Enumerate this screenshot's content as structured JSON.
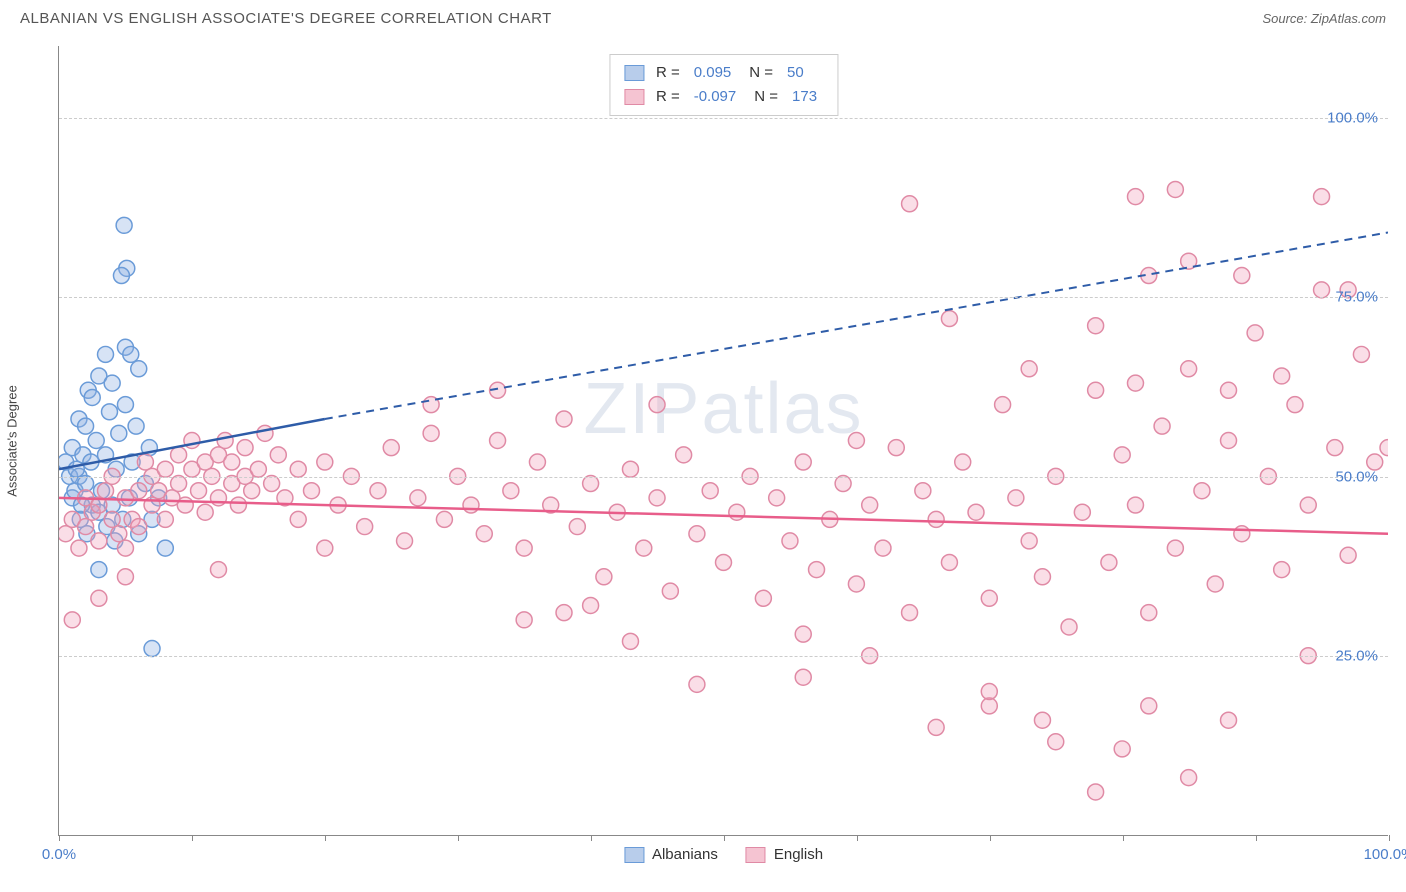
{
  "title": "ALBANIAN VS ENGLISH ASSOCIATE'S DEGREE CORRELATION CHART",
  "source": "Source: ZipAtlas.com",
  "watermark": "ZIPatlas",
  "y_axis_label": "Associate's Degree",
  "chart": {
    "type": "scatter",
    "xlim": [
      0,
      100
    ],
    "ylim": [
      0,
      110
    ],
    "x_ticks": [
      0,
      10,
      20,
      30,
      40,
      50,
      60,
      70,
      80,
      90,
      100
    ],
    "x_tick_labels": {
      "0": "0.0%",
      "100": "100.0%"
    },
    "y_gridlines": [
      25,
      50,
      75,
      100
    ],
    "y_labels": {
      "25": "25.0%",
      "50": "50.0%",
      "75": "75.0%",
      "100": "100.0%"
    },
    "background_color": "#ffffff",
    "grid_color": "#cccccc",
    "axis_color": "#888888",
    "label_color": "#4a7dc9",
    "marker_radius": 8,
    "marker_stroke_width": 1.5,
    "series": [
      {
        "name": "Albanians",
        "fill": "rgba(140,175,225,0.35)",
        "stroke": "#6a9bd8",
        "swatch_fill": "#b8cdeb",
        "swatch_border": "#6a9bd8",
        "R": "0.095",
        "N": "50",
        "trend": {
          "solid": {
            "x1": 0,
            "y1": 51,
            "x2": 20,
            "y2": 58
          },
          "dashed": {
            "x1": 20,
            "y1": 58,
            "x2": 100,
            "y2": 84
          },
          "color": "#2e5ca8",
          "width": 2.5
        },
        "points": [
          [
            0.5,
            52
          ],
          [
            0.8,
            50
          ],
          [
            1,
            47
          ],
          [
            1,
            54
          ],
          [
            1.2,
            48
          ],
          [
            1.5,
            50
          ],
          [
            1.5,
            58
          ],
          [
            1.6,
            44
          ],
          [
            1.8,
            53
          ],
          [
            2,
            49
          ],
          [
            2,
            57
          ],
          [
            2.2,
            62
          ],
          [
            2.4,
            52
          ],
          [
            2.5,
            46
          ],
          [
            2.5,
            61
          ],
          [
            2.8,
            55
          ],
          [
            3,
            45
          ],
          [
            3,
            64
          ],
          [
            3.2,
            48
          ],
          [
            3.5,
            53
          ],
          [
            3.5,
            67
          ],
          [
            3.8,
            59
          ],
          [
            4,
            46
          ],
          [
            4,
            63
          ],
          [
            4.3,
            51
          ],
          [
            4.5,
            56
          ],
          [
            4.8,
            44
          ],
          [
            5,
            60
          ],
          [
            5,
            68
          ],
          [
            5.3,
            47
          ],
          [
            5.5,
            52
          ],
          [
            5.8,
            57
          ],
          [
            6,
            42
          ],
          [
            6,
            65
          ],
          [
            6.5,
            49
          ],
          [
            6.8,
            54
          ],
          [
            7,
            44
          ],
          [
            7.5,
            47
          ],
          [
            8,
            40
          ],
          [
            4.9,
            85
          ],
          [
            5.1,
            79
          ],
          [
            4.7,
            78
          ],
          [
            5.4,
            67
          ],
          [
            3,
            37
          ],
          [
            7,
            26
          ],
          [
            1.3,
            51
          ],
          [
            1.7,
            46
          ],
          [
            2.1,
            42
          ],
          [
            3.6,
            43
          ],
          [
            4.2,
            41
          ]
        ]
      },
      {
        "name": "English",
        "fill": "rgba(240,160,185,0.35)",
        "stroke": "#e08aa5",
        "swatch_fill": "#f5c4d2",
        "swatch_border": "#e08aa5",
        "R": "-0.097",
        "N": "173",
        "trend": {
          "solid": {
            "x1": 0,
            "y1": 47,
            "x2": 100,
            "y2": 42
          },
          "color": "#e85d8a",
          "width": 2.5
        },
        "points": [
          [
            0.5,
            42
          ],
          [
            1,
            44
          ],
          [
            1.5,
            40
          ],
          [
            2,
            47
          ],
          [
            2,
            43
          ],
          [
            2.5,
            45
          ],
          [
            3,
            41
          ],
          [
            3,
            46
          ],
          [
            3.5,
            48
          ],
          [
            4,
            44
          ],
          [
            4,
            50
          ],
          [
            4.5,
            42
          ],
          [
            5,
            47
          ],
          [
            5,
            40
          ],
          [
            5.5,
            44
          ],
          [
            6,
            48
          ],
          [
            6,
            43
          ],
          [
            6.5,
            52
          ],
          [
            7,
            46
          ],
          [
            7,
            50
          ],
          [
            7.5,
            48
          ],
          [
            8,
            44
          ],
          [
            8,
            51
          ],
          [
            8.5,
            47
          ],
          [
            9,
            53
          ],
          [
            9,
            49
          ],
          [
            9.5,
            46
          ],
          [
            10,
            51
          ],
          [
            10,
            55
          ],
          [
            10.5,
            48
          ],
          [
            11,
            52
          ],
          [
            11,
            45
          ],
          [
            11.5,
            50
          ],
          [
            12,
            53
          ],
          [
            12,
            47
          ],
          [
            12.5,
            55
          ],
          [
            13,
            49
          ],
          [
            13,
            52
          ],
          [
            13.5,
            46
          ],
          [
            14,
            54
          ],
          [
            14,
            50
          ],
          [
            14.5,
            48
          ],
          [
            15,
            51
          ],
          [
            15.5,
            56
          ],
          [
            16,
            49
          ],
          [
            16.5,
            53
          ],
          [
            17,
            47
          ],
          [
            18,
            51
          ],
          [
            18,
            44
          ],
          [
            19,
            48
          ],
          [
            20,
            52
          ],
          [
            21,
            46
          ],
          [
            22,
            50
          ],
          [
            23,
            43
          ],
          [
            24,
            48
          ],
          [
            25,
            54
          ],
          [
            26,
            41
          ],
          [
            27,
            47
          ],
          [
            28,
            56
          ],
          [
            29,
            44
          ],
          [
            30,
            50
          ],
          [
            31,
            46
          ],
          [
            32,
            42
          ],
          [
            33,
            55
          ],
          [
            34,
            48
          ],
          [
            35,
            40
          ],
          [
            36,
            52
          ],
          [
            37,
            46
          ],
          [
            38,
            58
          ],
          [
            39,
            43
          ],
          [
            40,
            49
          ],
          [
            41,
            36
          ],
          [
            42,
            45
          ],
          [
            43,
            51
          ],
          [
            44,
            40
          ],
          [
            45,
            47
          ],
          [
            46,
            34
          ],
          [
            47,
            53
          ],
          [
            48,
            42
          ],
          [
            49,
            48
          ],
          [
            50,
            38
          ],
          [
            51,
            45
          ],
          [
            52,
            50
          ],
          [
            53,
            33
          ],
          [
            54,
            47
          ],
          [
            55,
            41
          ],
          [
            56,
            52
          ],
          [
            57,
            37
          ],
          [
            58,
            44
          ],
          [
            59,
            49
          ],
          [
            60,
            35
          ],
          [
            61,
            46
          ],
          [
            62,
            40
          ],
          [
            63,
            54
          ],
          [
            64,
            31
          ],
          [
            65,
            48
          ],
          [
            66,
            44
          ],
          [
            67,
            38
          ],
          [
            68,
            52
          ],
          [
            69,
            45
          ],
          [
            70,
            33
          ],
          [
            71,
            60
          ],
          [
            72,
            47
          ],
          [
            73,
            41
          ],
          [
            74,
            36
          ],
          [
            75,
            50
          ],
          [
            76,
            29
          ],
          [
            77,
            45
          ],
          [
            78,
            62
          ],
          [
            79,
            38
          ],
          [
            80,
            53
          ],
          [
            81,
            46
          ],
          [
            82,
            31
          ],
          [
            83,
            57
          ],
          [
            84,
            40
          ],
          [
            85,
            65
          ],
          [
            86,
            48
          ],
          [
            87,
            35
          ],
          [
            88,
            55
          ],
          [
            89,
            42
          ],
          [
            90,
            70
          ],
          [
            91,
            50
          ],
          [
            92,
            37
          ],
          [
            93,
            60
          ],
          [
            94,
            46
          ],
          [
            95,
            76
          ],
          [
            96,
            54
          ],
          [
            97,
            39
          ],
          [
            98,
            67
          ],
          [
            99,
            52
          ],
          [
            100,
            54
          ],
          [
            64,
            88
          ],
          [
            81,
            89
          ],
          [
            84,
            90
          ],
          [
            82,
            78
          ],
          [
            85,
            80
          ],
          [
            95,
            89
          ],
          [
            97,
            76
          ],
          [
            78,
            71
          ],
          [
            66,
            15
          ],
          [
            70,
            18
          ],
          [
            74,
            16
          ],
          [
            75,
            13
          ],
          [
            80,
            12
          ],
          [
            82,
            18
          ],
          [
            88,
            16
          ],
          [
            70,
            20
          ],
          [
            61,
            25
          ],
          [
            56,
            22
          ],
          [
            48,
            21
          ],
          [
            94,
            25
          ],
          [
            45,
            60
          ],
          [
            43,
            27
          ],
          [
            33,
            62
          ],
          [
            28,
            60
          ],
          [
            1,
            30
          ],
          [
            3,
            33
          ],
          [
            5,
            36
          ],
          [
            12,
            37
          ],
          [
            20,
            40
          ],
          [
            85,
            8
          ],
          [
            78,
            6
          ],
          [
            73,
            65
          ],
          [
            88,
            62
          ],
          [
            92,
            64
          ],
          [
            35,
            30
          ],
          [
            38,
            31
          ],
          [
            40,
            32
          ],
          [
            60,
            55
          ],
          [
            89,
            78
          ],
          [
            81,
            63
          ],
          [
            67,
            72
          ],
          [
            56,
            28
          ]
        ]
      }
    ]
  },
  "legend_bottom": [
    {
      "label": "Albanians",
      "fill": "#b8cdeb",
      "border": "#6a9bd8"
    },
    {
      "label": "English",
      "fill": "#f5c4d2",
      "border": "#e08aa5"
    }
  ]
}
